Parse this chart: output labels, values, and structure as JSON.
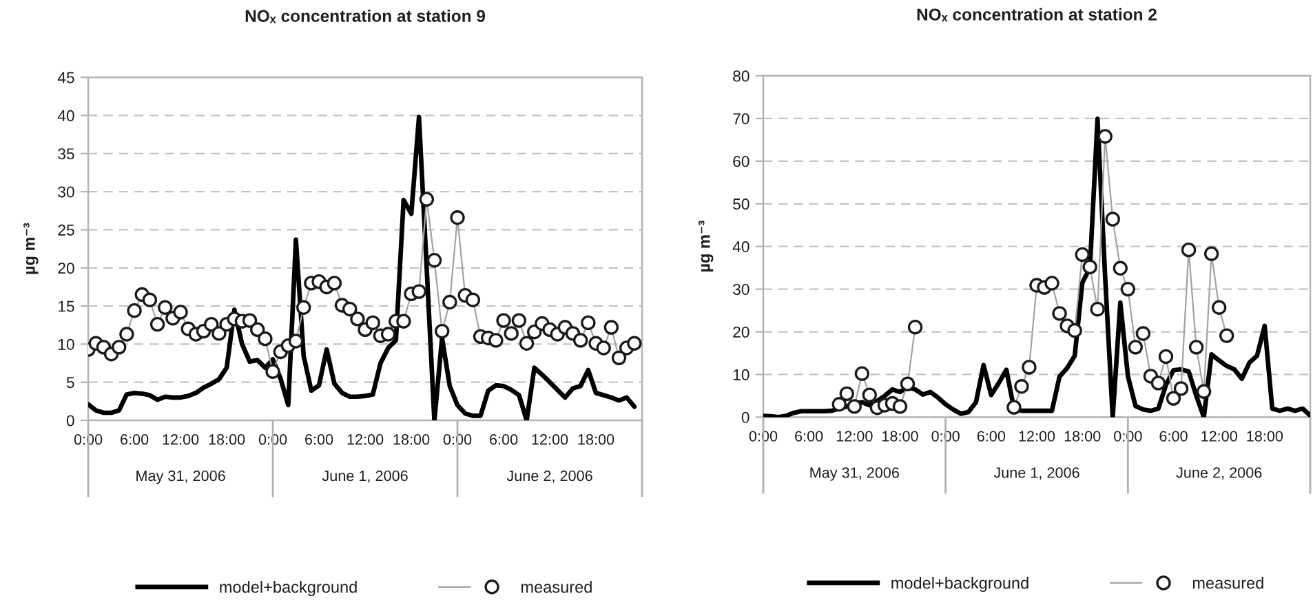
{
  "chart_data": [
    {
      "type": "line",
      "title": "NOₓ concentration at station 9",
      "ylabel": "µg m⁻³",
      "x": [
        "2006-05-31T00:00",
        "2006-05-31T01:00",
        "2006-05-31T02:00",
        "2006-05-31T03:00",
        "2006-05-31T04:00",
        "2006-05-31T05:00",
        "2006-05-31T06:00",
        "2006-05-31T07:00",
        "2006-05-31T08:00",
        "2006-05-31T09:00",
        "2006-05-31T10:00",
        "2006-05-31T11:00",
        "2006-05-31T12:00",
        "2006-05-31T13:00",
        "2006-05-31T14:00",
        "2006-05-31T15:00",
        "2006-05-31T16:00",
        "2006-05-31T17:00",
        "2006-05-31T18:00",
        "2006-05-31T19:00",
        "2006-05-31T20:00",
        "2006-05-31T21:00",
        "2006-05-31T22:00",
        "2006-05-31T23:00",
        "2006-06-01T00:00",
        "2006-06-01T01:00",
        "2006-06-01T02:00",
        "2006-06-01T03:00",
        "2006-06-01T04:00",
        "2006-06-01T05:00",
        "2006-06-01T06:00",
        "2006-06-01T07:00",
        "2006-06-01T08:00",
        "2006-06-01T09:00",
        "2006-06-01T10:00",
        "2006-06-01T11:00",
        "2006-06-01T12:00",
        "2006-06-01T13:00",
        "2006-06-01T14:00",
        "2006-06-01T15:00",
        "2006-06-01T16:00",
        "2006-06-01T17:00",
        "2006-06-01T18:00",
        "2006-06-01T19:00",
        "2006-06-01T20:00",
        "2006-06-01T21:00",
        "2006-06-01T22:00",
        "2006-06-01T23:00",
        "2006-06-02T00:00",
        "2006-06-02T01:00",
        "2006-06-02T02:00",
        "2006-06-02T03:00",
        "2006-06-02T04:00",
        "2006-06-02T05:00",
        "2006-06-02T06:00",
        "2006-06-02T07:00",
        "2006-06-02T08:00",
        "2006-06-02T09:00",
        "2006-06-02T10:00",
        "2006-06-02T11:00",
        "2006-06-02T12:00",
        "2006-06-02T13:00",
        "2006-06-02T14:00",
        "2006-06-02T15:00",
        "2006-06-02T16:00",
        "2006-06-02T17:00",
        "2006-06-02T18:00",
        "2006-06-02T19:00",
        "2006-06-02T20:00",
        "2006-06-02T21:00",
        "2006-06-02T22:00",
        "2006-06-02T23:00"
      ],
      "xlim": [
        "2006-05-31T00:00",
        "2006-06-03T00:00"
      ],
      "xticks": [
        {
          "value": "2006-05-31T00:00",
          "label": "0:00"
        },
        {
          "value": "2006-05-31T06:00",
          "label": "6:00"
        },
        {
          "value": "2006-05-31T12:00",
          "label": "12:00"
        },
        {
          "value": "2006-05-31T18:00",
          "label": "18:00"
        },
        {
          "value": "2006-06-01T00:00",
          "label": "0:00"
        },
        {
          "value": "2006-06-01T06:00",
          "label": "6:00"
        },
        {
          "value": "2006-06-01T12:00",
          "label": "12:00"
        },
        {
          "value": "2006-06-01T18:00",
          "label": "18:00"
        },
        {
          "value": "2006-06-02T00:00",
          "label": "0:00"
        },
        {
          "value": "2006-06-02T06:00",
          "label": "6:00"
        },
        {
          "value": "2006-06-02T12:00",
          "label": "12:00"
        },
        {
          "value": "2006-06-02T18:00",
          "label": "18:00"
        }
      ],
      "x2lim": [
        "2006-05-31T00:00",
        "2006-06-03T00:00"
      ],
      "x2ticks": [
        {
          "value": "2006-05-31T12:00",
          "label": "May 31, 2006"
        },
        {
          "value": "2006-06-01T12:00",
          "label": "June 1, 2006"
        },
        {
          "value": "2006-06-02T12:00",
          "label": "June 2, 2006"
        }
      ],
      "ylim": [
        0,
        45
      ],
      "yticks": [
        0,
        5,
        10,
        15,
        20,
        25,
        30,
        35,
        40,
        45
      ],
      "grid": "y",
      "legend": "bottom",
      "series": [
        {
          "name": "model+background",
          "color": "#000000",
          "values": [
            2.1,
            1.3,
            1.0,
            1.0,
            1.3,
            3.4,
            3.6,
            3.5,
            3.3,
            2.7,
            3.1,
            3.0,
            3.0,
            3.2,
            3.6,
            4.3,
            4.8,
            5.4,
            6.9,
            14.5,
            10.0,
            7.7,
            7.9,
            6.9,
            8.0,
            5.5,
            2.0,
            23.7,
            8.5,
            3.9,
            4.6,
            9.3,
            4.8,
            3.6,
            3.1,
            3.1,
            3.2,
            3.4,
            7.5,
            9.5,
            10.5,
            28.9,
            27.1,
            39.8,
            20.0,
            0.0,
            10.8,
            4.5,
            2.0,
            0.9,
            0.6,
            0.6,
            3.9,
            4.6,
            4.5,
            4.0,
            3.3,
            0.0,
            6.9,
            6.0,
            5.0,
            4.0,
            3.0,
            4.2,
            4.5,
            6.6,
            3.6,
            3.3,
            3.0,
            2.6,
            3.0,
            1.8
          ]
        },
        {
          "name": "measured",
          "color": "#1a1a1a",
          "marker": "circle",
          "values": [
            9.3,
            10.1,
            9.6,
            8.7,
            9.6,
            11.3,
            14.4,
            16.5,
            15.8,
            12.6,
            14.8,
            13.4,
            14.2,
            12.0,
            11.3,
            11.7,
            12.6,
            11.4,
            12.6,
            13.3,
            13.0,
            13.1,
            11.9,
            10.7,
            6.4,
            9.0,
            9.8,
            10.4,
            14.8,
            18.0,
            18.2,
            17.5,
            18.0,
            15.1,
            14.6,
            13.3,
            11.9,
            12.8,
            11.1,
            11.3,
            13.0,
            13.0,
            16.6,
            16.9,
            29.0,
            21.0,
            11.7,
            15.5,
            26.6,
            16.4,
            15.8,
            11.0,
            10.8,
            10.5,
            13.1,
            11.4,
            13.1,
            10.1,
            11.6,
            12.7,
            11.9,
            11.3,
            12.2,
            11.4,
            10.5,
            12.8,
            10.1,
            9.5,
            12.2,
            8.2,
            9.5,
            10.1
          ]
        }
      ]
    },
    {
      "type": "line",
      "title": "NOₓ concentration at station 2",
      "ylabel": "µg m⁻³",
      "x": [
        "2006-05-31T00:00",
        "2006-05-31T01:00",
        "2006-05-31T02:00",
        "2006-05-31T03:00",
        "2006-05-31T04:00",
        "2006-05-31T05:00",
        "2006-05-31T06:00",
        "2006-05-31T07:00",
        "2006-05-31T08:00",
        "2006-05-31T09:00",
        "2006-05-31T10:00",
        "2006-05-31T11:00",
        "2006-05-31T12:00",
        "2006-05-31T13:00",
        "2006-05-31T14:00",
        "2006-05-31T15:00",
        "2006-05-31T16:00",
        "2006-05-31T17:00",
        "2006-05-31T18:00",
        "2006-05-31T19:00",
        "2006-05-31T20:00",
        "2006-05-31T21:00",
        "2006-05-31T22:00",
        "2006-05-31T23:00",
        "2006-06-01T00:00",
        "2006-06-01T01:00",
        "2006-06-01T02:00",
        "2006-06-01T03:00",
        "2006-06-01T04:00",
        "2006-06-01T05:00",
        "2006-06-01T06:00",
        "2006-06-01T07:00",
        "2006-06-01T08:00",
        "2006-06-01T09:00",
        "2006-06-01T10:00",
        "2006-06-01T11:00",
        "2006-06-01T12:00",
        "2006-06-01T13:00",
        "2006-06-01T14:00",
        "2006-06-01T15:00",
        "2006-06-01T16:00",
        "2006-06-01T17:00",
        "2006-06-01T18:00",
        "2006-06-01T19:00",
        "2006-06-01T20:00",
        "2006-06-01T21:00",
        "2006-06-01T22:00",
        "2006-06-01T23:00",
        "2006-06-02T00:00",
        "2006-06-02T01:00",
        "2006-06-02T02:00",
        "2006-06-02T03:00",
        "2006-06-02T04:00",
        "2006-06-02T05:00",
        "2006-06-02T06:00",
        "2006-06-02T07:00",
        "2006-06-02T08:00",
        "2006-06-02T09:00",
        "2006-06-02T10:00",
        "2006-06-02T11:00",
        "2006-06-02T12:00",
        "2006-06-02T13:00",
        "2006-06-02T14:00",
        "2006-06-02T15:00",
        "2006-06-02T16:00",
        "2006-06-02T17:00",
        "2006-06-02T18:00",
        "2006-06-02T19:00",
        "2006-06-02T20:00",
        "2006-06-02T21:00",
        "2006-06-02T22:00",
        "2006-06-02T23:00",
        "2006-06-03T00:00"
      ],
      "xlim": [
        "2006-05-31T00:00",
        "2006-06-03T00:00"
      ],
      "xticks": [
        {
          "value": "2006-05-31T00:00",
          "label": "0:00"
        },
        {
          "value": "2006-05-31T06:00",
          "label": "6:00"
        },
        {
          "value": "2006-05-31T12:00",
          "label": "12:00"
        },
        {
          "value": "2006-05-31T18:00",
          "label": "18:00"
        },
        {
          "value": "2006-06-01T00:00",
          "label": "0:00"
        },
        {
          "value": "2006-06-01T06:00",
          "label": "6:00"
        },
        {
          "value": "2006-06-01T12:00",
          "label": "12:00"
        },
        {
          "value": "2006-06-01T18:00",
          "label": "18:00"
        },
        {
          "value": "2006-06-02T00:00",
          "label": "0:00"
        },
        {
          "value": "2006-06-02T06:00",
          "label": "6:00"
        },
        {
          "value": "2006-06-02T12:00",
          "label": "12:00"
        },
        {
          "value": "2006-06-02T18:00",
          "label": "18:00"
        }
      ],
      "x2lim": [
        "2006-05-31T00:00",
        "2006-06-03T00:00"
      ],
      "x2ticks": [
        {
          "value": "2006-05-31T12:00",
          "label": "May 31, 2006"
        },
        {
          "value": "2006-06-01T12:00",
          "label": "June 1, 2006"
        },
        {
          "value": "2006-06-02T12:00",
          "label": "June 2, 2006"
        }
      ],
      "ylim": [
        0,
        80
      ],
      "yticks": [
        0,
        10,
        20,
        30,
        40,
        50,
        60,
        70,
        80
      ],
      "grid": "y",
      "legend": "bottom",
      "series": [
        {
          "name": "model+background",
          "color": "#000000",
          "values": [
            0.3,
            0.2,
            0.0,
            0.3,
            1.0,
            1.4,
            1.4,
            1.4,
            1.4,
            1.5,
            2.0,
            2.5,
            3.2,
            3.5,
            2.8,
            3.8,
            5.0,
            6.5,
            5.9,
            7.0,
            6.5,
            5.3,
            5.9,
            4.6,
            3.0,
            1.8,
            0.8,
            1.2,
            3.5,
            12.2,
            5.2,
            8.0,
            11.1,
            2.0,
            1.5,
            1.5,
            1.5,
            1.5,
            1.5,
            9.5,
            11.5,
            14.4,
            31.5,
            35.0,
            69.9,
            33.0,
            0.0,
            26.8,
            9.6,
            2.6,
            1.8,
            1.5,
            2.0,
            7.5,
            11.0,
            11.2,
            10.7,
            5.0,
            0.0,
            14.7,
            13.3,
            12.0,
            11.2,
            9.0,
            12.8,
            14.4,
            21.4,
            2.0,
            1.5,
            2.0,
            1.5,
            2.0,
            0.4
          ]
        },
        {
          "name": "measured",
          "color": "#1a1a1a",
          "marker": "circle",
          "values": [
            null,
            null,
            null,
            null,
            null,
            null,
            null,
            null,
            null,
            null,
            3.0,
            5.5,
            2.5,
            10.2,
            5.2,
            2.2,
            2.8,
            3.2,
            2.5,
            7.8,
            21.1,
            null,
            null,
            null,
            null,
            null,
            null,
            null,
            null,
            null,
            null,
            null,
            null,
            2.3,
            7.2,
            11.7,
            30.9,
            30.4,
            31.4,
            24.3,
            21.4,
            20.3,
            38.1,
            35.2,
            25.3,
            65.8,
            46.4,
            34.9,
            30.0,
            16.4,
            19.6,
            9.6,
            8.0,
            14.2,
            4.4,
            6.7,
            39.2,
            16.4,
            6.0,
            38.3,
            25.7,
            19.1,
            null,
            null,
            null,
            null,
            null,
            null,
            null,
            null,
            null,
            null,
            null
          ]
        }
      ]
    }
  ]
}
